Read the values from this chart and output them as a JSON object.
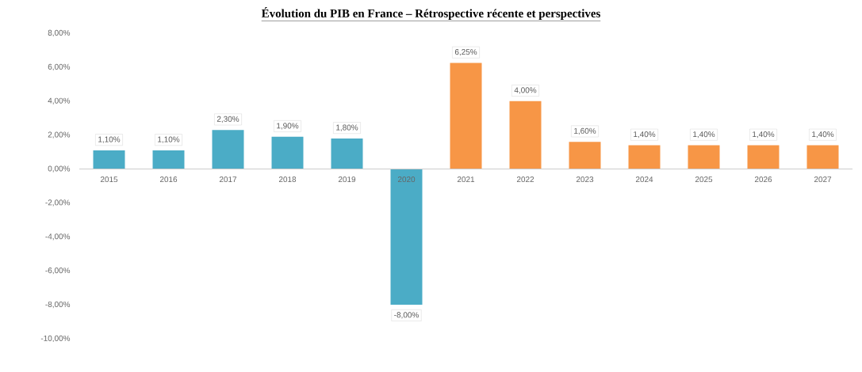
{
  "chart_data": {
    "type": "bar",
    "title": "**Évolution du PIB en France – Rétrospective récente et perspectives**",
    "categories": [
      "2015",
      "2016",
      "2017",
      "2018",
      "2019",
      "2020",
      "2021",
      "2022",
      "2023",
      "2024",
      "2025",
      "2026",
      "2027"
    ],
    "values": [
      1.1,
      1.1,
      2.3,
      1.9,
      1.8,
      -8.0,
      6.25,
      4.0,
      1.6,
      1.4,
      1.4,
      1.4,
      1.4
    ],
    "colors": [
      "#4bacc6",
      "#4bacc6",
      "#4bacc6",
      "#4bacc6",
      "#4bacc6",
      "#4bacc6",
      "#f79646",
      "#f79646",
      "#f79646",
      "#f79646",
      "#f79646",
      "#f79646",
      "#f79646"
    ],
    "value_labels": [
      "1,10%",
      "1,10%",
      "2,30%",
      "1,90%",
      "1,80%",
      "-8,00%",
      "6,25%",
      "4,00%",
      "1,60%",
      "1,40%",
      "1,40%",
      "1,40%",
      "1,40%"
    ],
    "ylim": [
      -10,
      8
    ],
    "yticks": [
      {
        "value": -10,
        "label": "-10,00%"
      },
      {
        "value": -8,
        "label": "-8,00%"
      },
      {
        "value": -6,
        "label": "-6,00%"
      },
      {
        "value": -4,
        "label": "-4,00%"
      },
      {
        "value": -2,
        "label": "-2,00%"
      },
      {
        "value": 0,
        "label": "0,00%"
      },
      {
        "value": 2,
        "label": "2,00%"
      },
      {
        "value": 4,
        "label": "4,00%"
      },
      {
        "value": 6,
        "label": "6,00%"
      },
      {
        "value": 8,
        "label": "8,00%"
      }
    ],
    "grid": false
  }
}
